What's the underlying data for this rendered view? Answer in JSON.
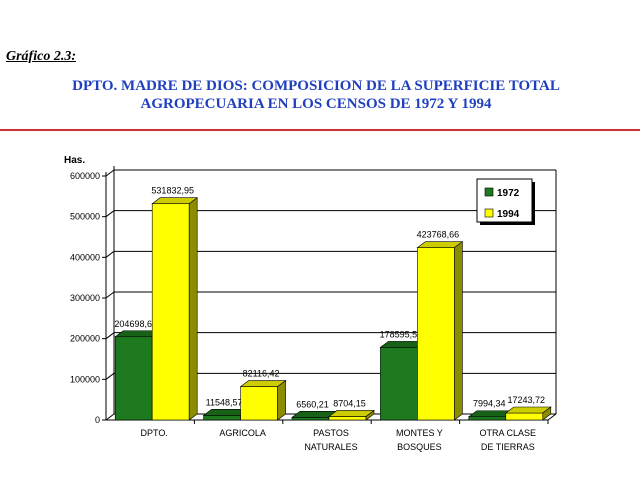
{
  "figure_label": "Gráfico 2.3:",
  "title_line1": "DPTO. MADRE DE DIOS: COMPOSICION DE LA SUPERFICIE TOTAL",
  "title_line2": "AGROPECUARIA EN LOS CENSOS DE 1972 Y 1994",
  "colors": {
    "title": "#1f3fbf",
    "rule": "#d03030",
    "series_1972": "#1e7a1e",
    "series_1994": "#ffff00"
  },
  "chart_data": {
    "type": "bar",
    "style": "3d-clustered",
    "ylabel": "Has.",
    "ylim": [
      0,
      600000
    ],
    "yticks": [
      0,
      100000,
      200000,
      300000,
      400000,
      500000,
      600000
    ],
    "grid": true,
    "legend_position": "top-right",
    "categories": [
      [
        "DPTO."
      ],
      [
        "AGRICOLA"
      ],
      [
        "PASTOS",
        "NATURALES"
      ],
      [
        "MONTES Y",
        "BOSQUES"
      ],
      [
        "OTRA CLASE",
        "DE TIERRAS"
      ]
    ],
    "series": [
      {
        "name": "1972",
        "values": [
          204698.65,
          11548.57,
          6560.21,
          178595.53,
          7994.34
        ],
        "labels": [
          "204698,65",
          "11548,57",
          "6560,21",
          "178595,53",
          "7994,34"
        ]
      },
      {
        "name": "1994",
        "values": [
          531832.95,
          82116.42,
          8704.15,
          423768.66,
          17243.72
        ],
        "labels": [
          "531832,95",
          "82116,42",
          "8704,15",
          "423768,66",
          "17243,72"
        ]
      }
    ]
  }
}
